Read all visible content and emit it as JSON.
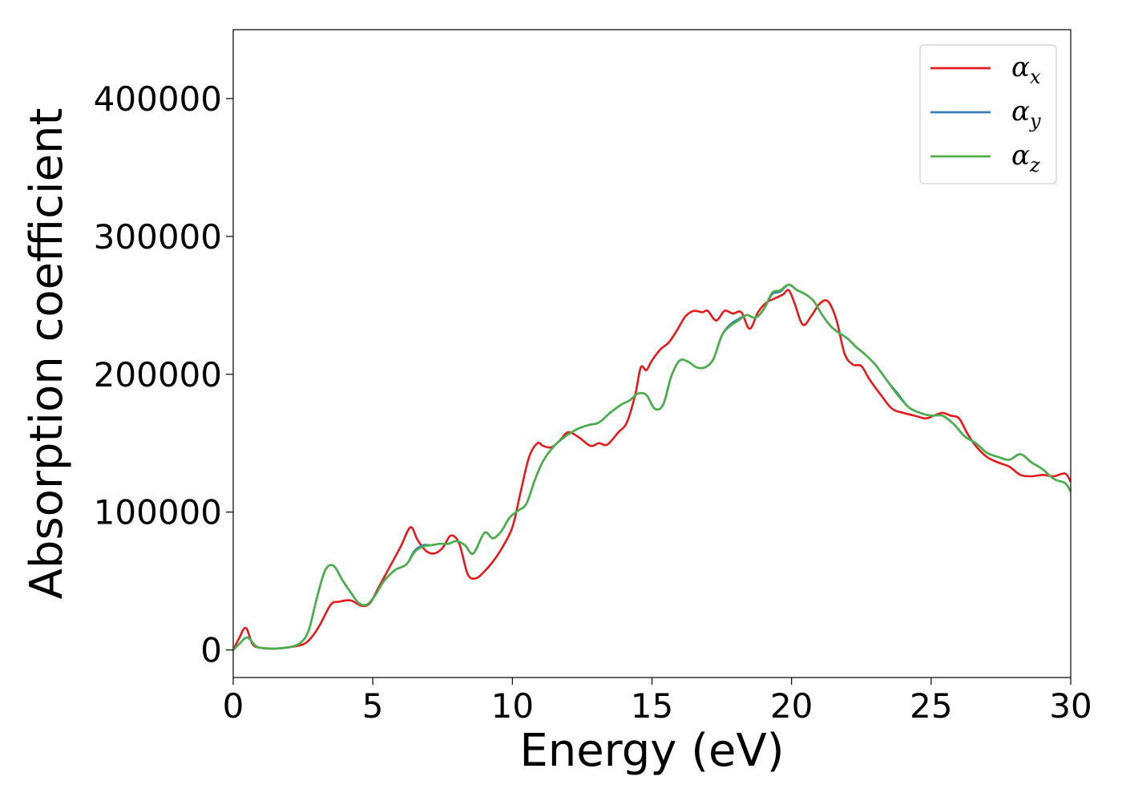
{
  "chart_data": {
    "type": "line",
    "title": "",
    "xlabel": "Energy (eV)",
    "ylabel": "Absorption coefficient",
    "xlim": [
      0,
      30
    ],
    "ylim": [
      -20000,
      450000
    ],
    "xticks": [
      0,
      5,
      10,
      15,
      20,
      25,
      30
    ],
    "xtick_labels": [
      "0",
      "5",
      "10",
      "15",
      "20",
      "25",
      "30"
    ],
    "yticks": [
      0,
      100000,
      200000,
      300000,
      400000
    ],
    "ytick_labels": [
      "0",
      "100000",
      "200000",
      "300000",
      "400000"
    ],
    "grid": false,
    "legend_position": "top-right",
    "series": [
      {
        "name": "αx",
        "legend_base": "α",
        "legend_sub": "x",
        "color": "#e41a1c",
        "x": [
          0,
          0.2,
          0.45,
          0.7,
          1.0,
          1.5,
          2.0,
          2.5,
          2.8,
          3.1,
          3.5,
          3.8,
          4.2,
          4.6,
          4.9,
          5.2,
          5.6,
          6.0,
          6.35,
          6.6,
          6.9,
          7.2,
          7.5,
          7.8,
          8.1,
          8.4,
          8.7,
          9.0,
          9.3,
          9.6,
          10.0,
          10.3,
          10.6,
          10.9,
          11.1,
          11.4,
          11.7,
          12.0,
          12.4,
          12.8,
          13.1,
          13.4,
          13.8,
          14.1,
          14.4,
          14.6,
          14.8,
          15.0,
          15.3,
          15.6,
          15.9,
          16.2,
          16.5,
          16.8,
          17.0,
          17.3,
          17.6,
          17.9,
          18.2,
          18.5,
          18.8,
          19.1,
          19.4,
          19.7,
          19.9,
          20.1,
          20.4,
          20.7,
          21.0,
          21.3,
          21.6,
          21.9,
          22.2,
          22.5,
          22.8,
          23.2,
          23.6,
          24.0,
          24.4,
          24.8,
          25.1,
          25.4,
          25.7,
          26.0,
          26.3,
          26.6,
          27.0,
          27.4,
          27.8,
          28.2,
          28.6,
          29.0,
          29.4,
          29.8,
          30.0
        ],
        "y": [
          0,
          8000,
          16000,
          4000,
          1500,
          1000,
          2000,
          4000,
          9000,
          18000,
          33000,
          35000,
          36000,
          32000,
          34000,
          45000,
          60000,
          75000,
          89000,
          80000,
          72000,
          70000,
          74000,
          83000,
          77000,
          55000,
          52000,
          57000,
          64000,
          73000,
          89000,
          115000,
          140000,
          150000,
          148000,
          147000,
          152000,
          158000,
          154000,
          148000,
          150000,
          149000,
          158000,
          165000,
          185000,
          205000,
          203000,
          210000,
          218000,
          223000,
          232000,
          242000,
          246000,
          245000,
          246000,
          239000,
          246000,
          244000,
          245000,
          233000,
          245000,
          252000,
          255000,
          258000,
          261000,
          252000,
          236000,
          242000,
          251000,
          253000,
          240000,
          215000,
          207000,
          206000,
          196000,
          185000,
          175000,
          172000,
          170000,
          168000,
          170000,
          172000,
          170000,
          168000,
          157000,
          148000,
          140000,
          136000,
          133000,
          127000,
          126000,
          127000,
          126000,
          128000,
          122000
        ]
      },
      {
        "name": "αy",
        "legend_base": "α",
        "legend_sub": "y",
        "color": "#377eb8",
        "x": [
          0,
          0.2,
          0.5,
          0.8,
          1.0,
          1.5,
          2.0,
          2.4,
          2.7,
          3.0,
          3.3,
          3.6,
          3.9,
          4.2,
          4.5,
          4.8,
          5.1,
          5.4,
          5.8,
          6.2,
          6.5,
          6.8,
          7.1,
          7.4,
          7.7,
          8.0,
          8.3,
          8.6,
          9.0,
          9.3,
          9.6,
          9.9,
          10.2,
          10.5,
          10.8,
          11.1,
          11.5,
          11.9,
          12.3,
          12.7,
          13.1,
          13.5,
          13.9,
          14.2,
          14.5,
          14.8,
          15.1,
          15.4,
          15.7,
          16.0,
          16.3,
          16.6,
          16.9,
          17.2,
          17.5,
          17.8,
          18.1,
          18.4,
          18.7,
          19.0,
          19.3,
          19.6,
          19.9,
          20.2,
          20.5,
          20.8,
          21.1,
          21.4,
          21.7,
          22.0,
          22.3,
          22.6,
          23.0,
          23.4,
          23.8,
          24.2,
          24.6,
          25.0,
          25.4,
          25.8,
          26.2,
          26.6,
          27.0,
          27.4,
          27.8,
          28.2,
          28.6,
          29.0,
          29.4,
          29.8,
          30.0
        ],
        "y": [
          0,
          4000,
          9000,
          3000,
          1500,
          1000,
          2000,
          5000,
          14000,
          38000,
          58000,
          61000,
          51000,
          42000,
          34000,
          33000,
          40000,
          50000,
          58000,
          62000,
          72000,
          76000,
          76000,
          77000,
          77000,
          79000,
          76000,
          70000,
          85000,
          81000,
          86000,
          96000,
          101000,
          106000,
          123000,
          137000,
          148000,
          155000,
          160000,
          163000,
          165000,
          172000,
          178000,
          181000,
          186000,
          185000,
          175000,
          178000,
          199000,
          210000,
          209000,
          205000,
          205000,
          211000,
          228000,
          236000,
          240000,
          243000,
          241000,
          247000,
          258000,
          260000,
          265000,
          261000,
          258000,
          253000,
          243000,
          235000,
          230000,
          226000,
          220000,
          215000,
          207000,
          196000,
          186000,
          176000,
          172000,
          170000,
          170000,
          164000,
          155000,
          150000,
          143000,
          140000,
          138000,
          142000,
          136000,
          131000,
          124000,
          121000,
          115000
        ]
      },
      {
        "name": "αz",
        "legend_base": "α",
        "legend_sub": "z",
        "color": "#4daf4a",
        "x": [
          0,
          0.2,
          0.5,
          0.8,
          1.0,
          1.5,
          2.0,
          2.4,
          2.7,
          3.0,
          3.3,
          3.6,
          3.9,
          4.2,
          4.5,
          4.8,
          5.1,
          5.4,
          5.8,
          6.2,
          6.5,
          6.8,
          7.1,
          7.4,
          7.7,
          8.0,
          8.3,
          8.6,
          9.0,
          9.3,
          9.6,
          9.9,
          10.2,
          10.5,
          10.8,
          11.1,
          11.5,
          11.9,
          12.3,
          12.7,
          13.1,
          13.5,
          13.9,
          14.2,
          14.5,
          14.8,
          15.1,
          15.4,
          15.7,
          16.0,
          16.3,
          16.6,
          16.9,
          17.2,
          17.5,
          17.8,
          18.1,
          18.4,
          18.7,
          19.0,
          19.3,
          19.6,
          19.9,
          20.2,
          20.5,
          20.8,
          21.1,
          21.4,
          21.7,
          22.0,
          22.3,
          22.6,
          23.0,
          23.4,
          23.8,
          24.2,
          24.6,
          25.0,
          25.4,
          25.8,
          26.2,
          26.6,
          27.0,
          27.4,
          27.8,
          28.2,
          28.6,
          29.0,
          29.4,
          29.8,
          30.0
        ],
        "y": [
          0,
          4000,
          9000,
          3000,
          1500,
          1000,
          2000,
          5000,
          14000,
          38000,
          58000,
          61000,
          51000,
          42000,
          34000,
          33000,
          40000,
          50000,
          58000,
          62000,
          71000,
          75000,
          76000,
          77000,
          77000,
          79000,
          76000,
          70000,
          85000,
          81000,
          86000,
          96000,
          101000,
          106000,
          123000,
          137000,
          148000,
          155000,
          160000,
          163000,
          165000,
          172000,
          178000,
          181000,
          186000,
          185000,
          175000,
          178000,
          199000,
          210000,
          209000,
          205000,
          205000,
          211000,
          228000,
          235000,
          239000,
          243000,
          241000,
          247000,
          259000,
          261000,
          265000,
          261000,
          258000,
          253000,
          243000,
          235000,
          230000,
          226000,
          220000,
          215000,
          207000,
          196000,
          185000,
          176000,
          172000,
          170000,
          170000,
          164000,
          155000,
          150000,
          143000,
          140000,
          138000,
          142000,
          136000,
          131000,
          124000,
          121000,
          115000
        ]
      }
    ]
  }
}
